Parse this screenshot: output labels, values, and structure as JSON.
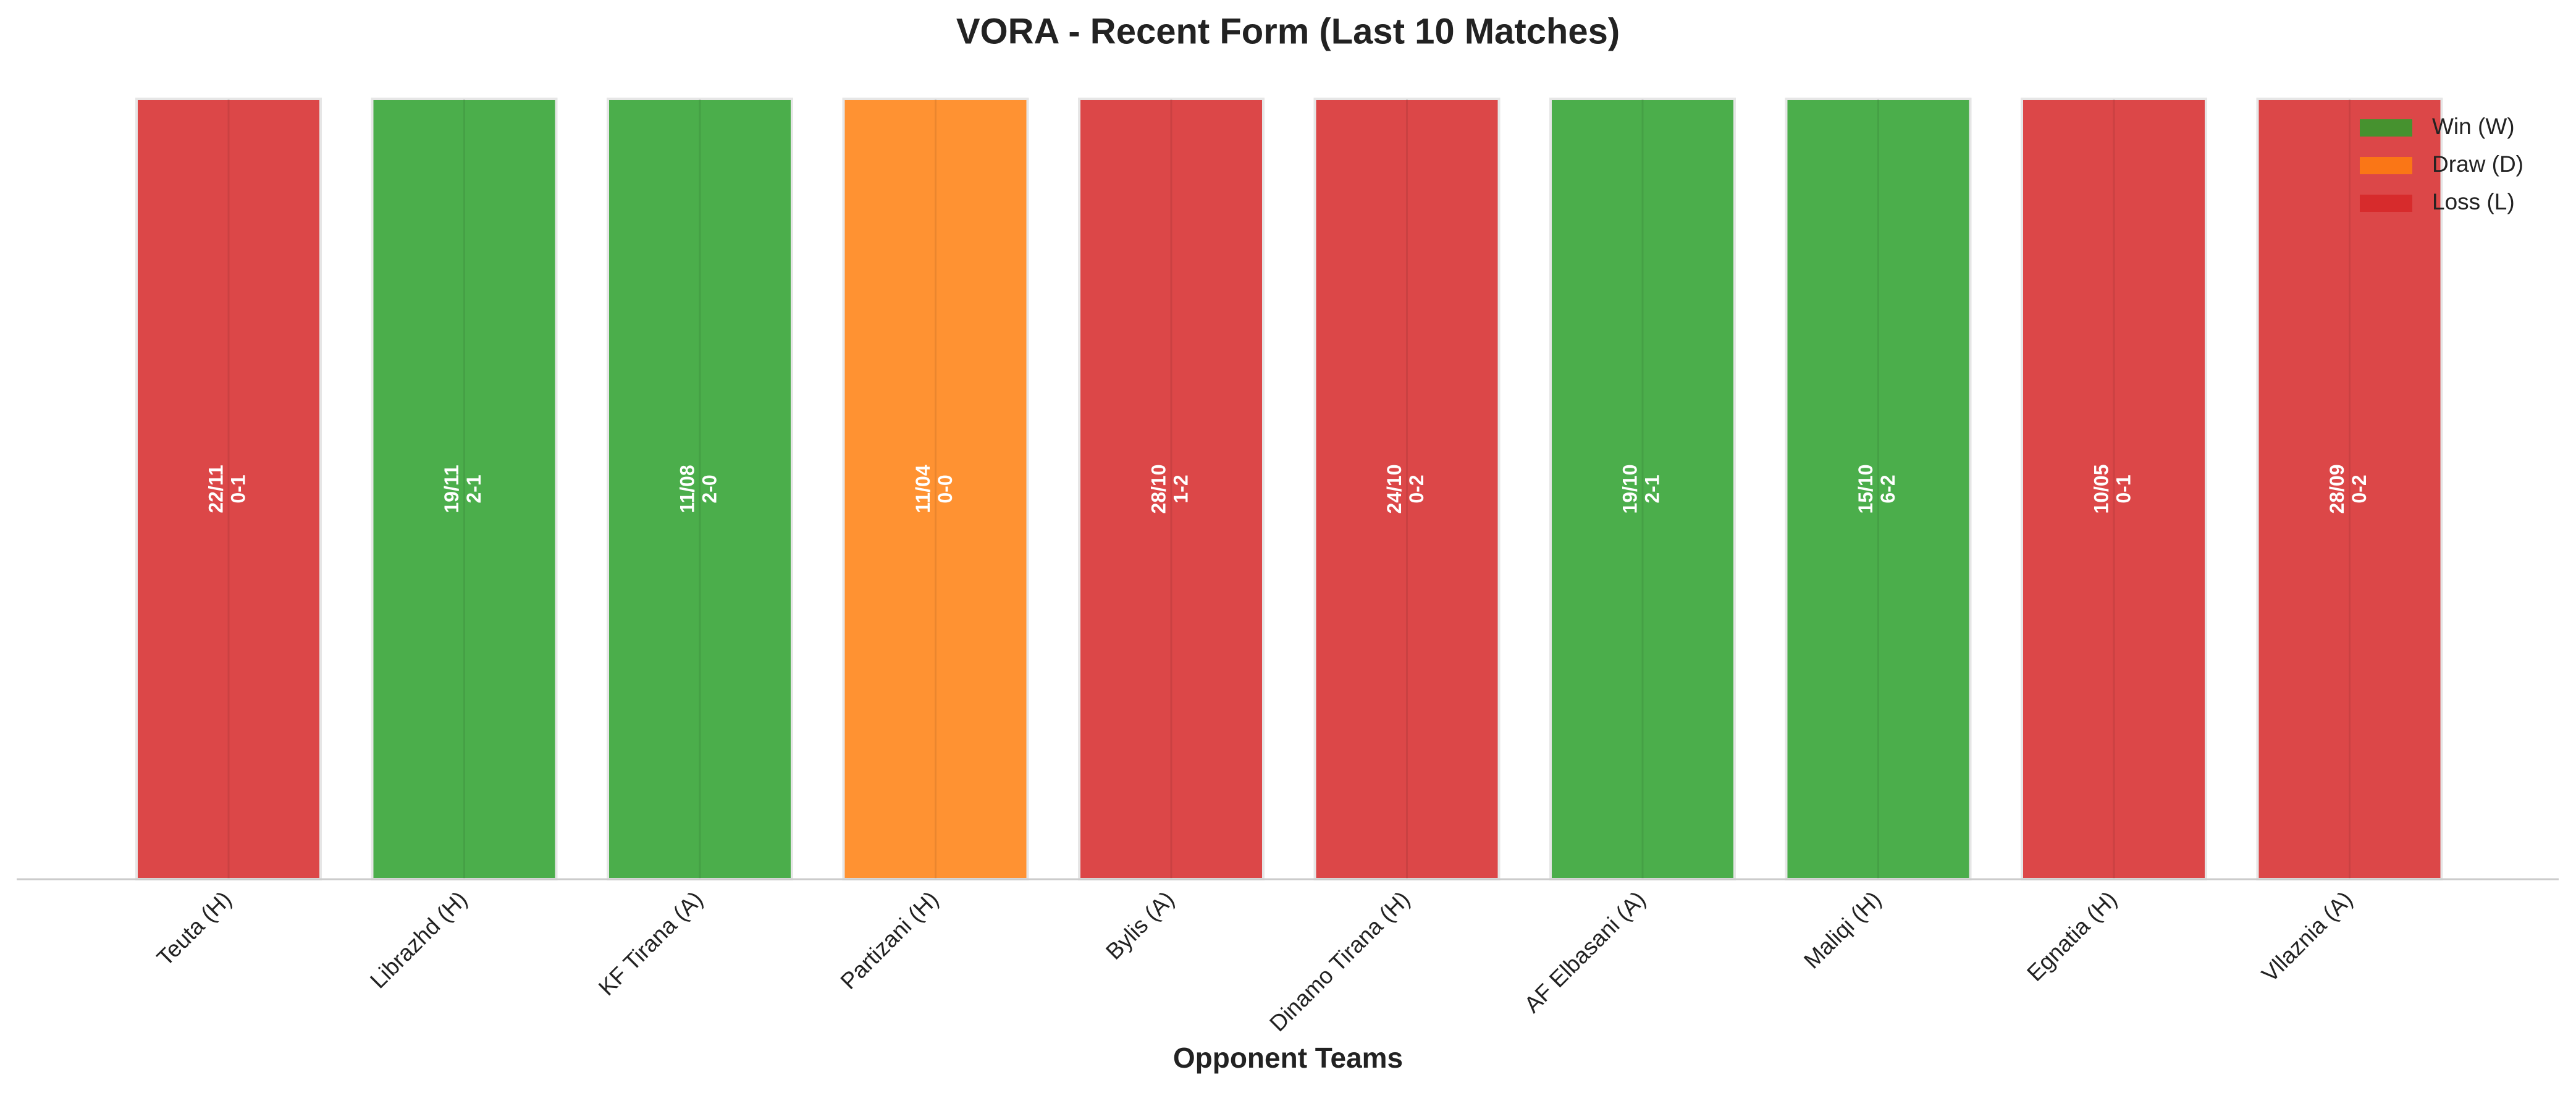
{
  "chart_data": {
    "type": "bar",
    "title": "VORA - Recent Form (Last 10 Matches)",
    "x_label": "Opponent Teams",
    "categories": [
      "Teuta (H)",
      "Librazhd (H)",
      "KF Tirana (A)",
      "Partizani (H)",
      "Bylis (A)",
      "Dinamo Tirana (H)",
      "AF Elbasani (A)",
      "Maliqi (H)",
      "Egnatia (H)",
      "Vllaznia (A)"
    ],
    "values": [
      1,
      1,
      1,
      1,
      1,
      1,
      1,
      1,
      1,
      1
    ],
    "dates": [
      "22/11",
      "19/11",
      "11/08",
      "11/04",
      "28/10",
      "24/10",
      "19/10",
      "15/10",
      "10/05",
      "28/09"
    ],
    "scores": [
      "0-1",
      "2-1",
      "2-0",
      "0-0",
      "1-2",
      "0-2",
      "2-1",
      "6-2",
      "0-1",
      "0-2"
    ],
    "colors": [
      "#d62728",
      "#2ca02c",
      "#2ca02c",
      "#ff7f0e",
      "#d62728",
      "#d62728",
      "#2ca02c",
      "#2ca02c",
      "#d62728",
      "#d62728"
    ],
    "ylim": [
      0,
      1
    ],
    "grid": true,
    "legend": {
      "loc": "upper right",
      "entries": [
        {
          "name": "Win (W)",
          "color": "#2ca02c"
        },
        {
          "name": "Draw (D)",
          "color": "#ff7f0e"
        },
        {
          "name": "Loss (L)",
          "color": "#d62728"
        }
      ]
    }
  }
}
